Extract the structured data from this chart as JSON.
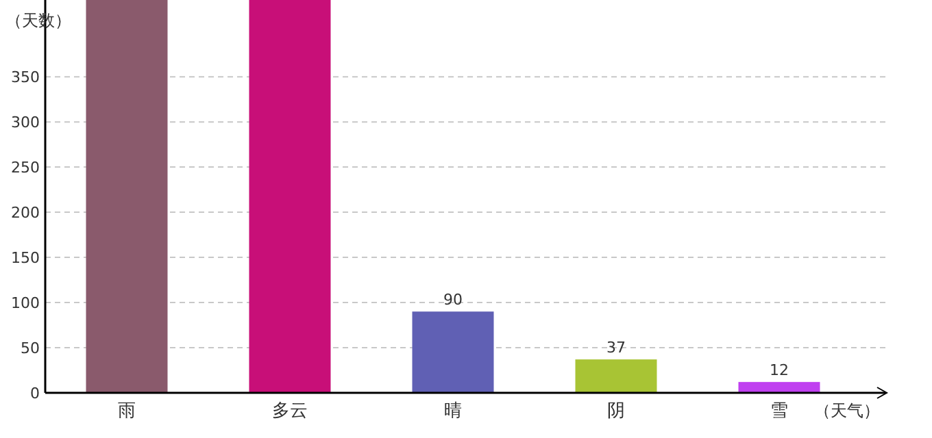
{
  "chart_data": {
    "type": "bar",
    "xlabel": "（天气）",
    "ylabel": "（天数）",
    "categories": [
      "雨",
      "多云",
      "晴",
      "阴",
      "雪"
    ],
    "values": [
      435,
      435,
      90,
      37,
      12
    ],
    "colors": [
      "#8a5a6c",
      "#c80f78",
      "#6060b4",
      "#a8c434",
      "#c040f0"
    ],
    "value_labels": [
      null,
      null,
      "90",
      "37",
      "12"
    ],
    "ylim": [
      0,
      435
    ],
    "yticks": [
      0,
      50,
      100,
      150,
      200,
      250,
      300,
      350
    ],
    "grid": "y"
  }
}
